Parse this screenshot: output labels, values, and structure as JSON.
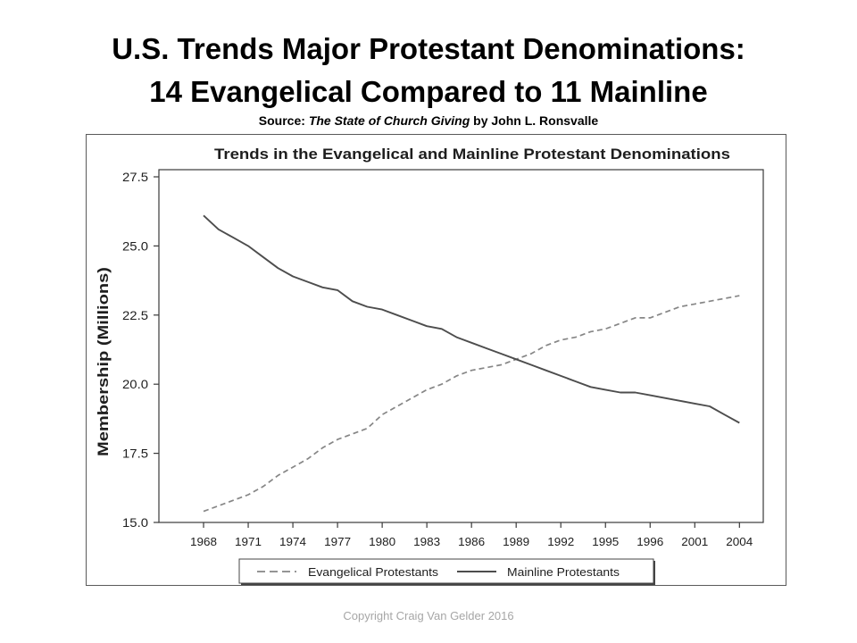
{
  "slide": {
    "title_line1": "U.S. Trends Major Protestant Denominations:",
    "title_line2": "14 Evangelical Compared to 11 Mainline",
    "source": {
      "label": "Source:",
      "book": "The State of Church Giving",
      "author": "by John L. Ronsvalle"
    },
    "footer": "Copyright Craig Van Gelder 2016"
  },
  "chart_data": {
    "type": "line",
    "title": "Trends in the Evangelical and Mainline Protestant Denominations",
    "ylabel": "Membership (Millions)",
    "xtick_labels": [
      "1968",
      "1971",
      "1974",
      "1977",
      "1980",
      "1983",
      "1986",
      "1989",
      "1992",
      "1995",
      "1996",
      "2001",
      "2004"
    ],
    "ytick_labels": [
      "27.5",
      "25.0",
      "22.5",
      "20.0",
      "17.5",
      "15.0"
    ],
    "xlim": [
      1965,
      2005.6
    ],
    "ylim": [
      15.0,
      27.5
    ],
    "grid": false,
    "legend": {
      "position": "bottom"
    },
    "x": [
      1968,
      1969,
      1970,
      1971,
      1972,
      1973,
      1974,
      1975,
      1976,
      1977,
      1978,
      1979,
      1980,
      1981,
      1982,
      1983,
      1984,
      1985,
      1986,
      1987,
      1988,
      1989,
      1990,
      1991,
      1992,
      1993,
      1994,
      1995,
      1996,
      1997,
      1998,
      1999,
      2000,
      2001,
      2002,
      2003,
      2004
    ],
    "series": [
      {
        "name": "Evangelical Protestants",
        "color": "#868686",
        "dashed": true,
        "values": [
          15.4,
          15.6,
          15.8,
          16.0,
          16.3,
          16.7,
          17.0,
          17.3,
          17.7,
          18.0,
          18.2,
          18.4,
          18.9,
          19.2,
          19.5,
          19.8,
          20.0,
          20.3,
          20.5,
          20.6,
          20.7,
          20.9,
          21.1,
          21.4,
          21.6,
          21.7,
          21.9,
          22.0,
          22.2,
          22.4,
          22.4,
          22.6,
          22.8,
          22.9,
          23.0,
          23.1,
          23.2
        ]
      },
      {
        "name": "Mainline Protestants",
        "color": "#4d4d4d",
        "dashed": false,
        "values": [
          26.1,
          25.6,
          25.3,
          25.0,
          24.6,
          24.2,
          23.9,
          23.7,
          23.5,
          23.4,
          23.0,
          22.8,
          22.7,
          22.5,
          22.3,
          22.1,
          22.0,
          21.7,
          21.5,
          21.3,
          21.1,
          20.9,
          20.7,
          20.5,
          20.3,
          20.1,
          19.9,
          19.8,
          19.7,
          19.7,
          19.6,
          19.5,
          19.4,
          19.3,
          19.2,
          18.9,
          18.6
        ]
      }
    ]
  }
}
